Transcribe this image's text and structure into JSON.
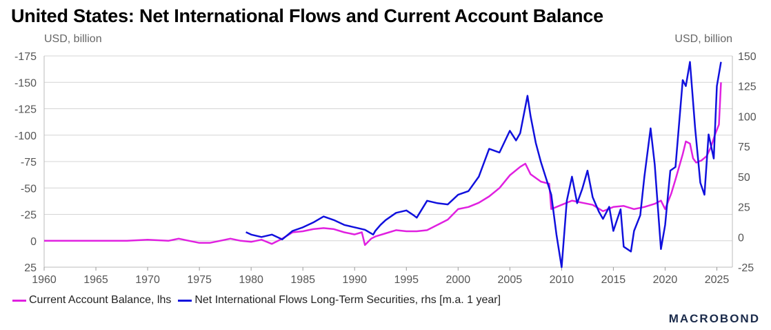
{
  "chart_data": {
    "type": "line",
    "title": "United States: Net International Flows and Current Account Balance",
    "left_axis": {
      "label": "USD, billion",
      "range": [
        -175,
        25
      ],
      "inverted": true,
      "ticks": [
        -175,
        -150,
        -125,
        -100,
        -75,
        -50,
        -25,
        0,
        25
      ]
    },
    "right_axis": {
      "label": "USD, billion",
      "range": [
        -25,
        150
      ],
      "ticks": [
        -25,
        0,
        25,
        50,
        75,
        100,
        125,
        150
      ]
    },
    "x_axis": {
      "range": [
        1960,
        2026.5
      ],
      "ticks": [
        1960,
        1965,
        1970,
        1975,
        1980,
        1985,
        1990,
        1995,
        2000,
        2005,
        2010,
        2015,
        2020,
        2025
      ]
    },
    "grid": true,
    "legend_position": "bottom-left",
    "series": [
      {
        "name": "Current Account Balance, lhs",
        "axis": "left",
        "color": "#e020e0",
        "points": [
          [
            1960,
            0
          ],
          [
            1962,
            0
          ],
          [
            1964,
            0
          ],
          [
            1966,
            0
          ],
          [
            1968,
            0
          ],
          [
            1970,
            -1
          ],
          [
            1972,
            0
          ],
          [
            1973,
            -2
          ],
          [
            1974,
            0
          ],
          [
            1975,
            2
          ],
          [
            1976,
            2
          ],
          [
            1977,
            0
          ],
          [
            1978,
            -2
          ],
          [
            1979,
            0
          ],
          [
            1980,
            1
          ],
          [
            1981,
            -1
          ],
          [
            1982,
            3
          ],
          [
            1983,
            -2
          ],
          [
            1984,
            -8
          ],
          [
            1985,
            -9
          ],
          [
            1986,
            -11
          ],
          [
            1987,
            -12
          ],
          [
            1988,
            -11
          ],
          [
            1989,
            -8
          ],
          [
            1990,
            -6
          ],
          [
            1990.7,
            -8
          ],
          [
            1991,
            4
          ],
          [
            1991.6,
            -2
          ],
          [
            1992,
            -4
          ],
          [
            1993,
            -7
          ],
          [
            1994,
            -10
          ],
          [
            1995,
            -9
          ],
          [
            1996,
            -9
          ],
          [
            1997,
            -10
          ],
          [
            1998,
            -15
          ],
          [
            1999,
            -20
          ],
          [
            2000,
            -30
          ],
          [
            2001,
            -32
          ],
          [
            2002,
            -36
          ],
          [
            2003,
            -42
          ],
          [
            2004,
            -50
          ],
          [
            2005,
            -62
          ],
          [
            2006,
            -70
          ],
          [
            2006.5,
            -73
          ],
          [
            2007,
            -63
          ],
          [
            2008,
            -56
          ],
          [
            2008.8,
            -54
          ],
          [
            2009,
            -30
          ],
          [
            2010,
            -34
          ],
          [
            2011,
            -38
          ],
          [
            2012,
            -36
          ],
          [
            2013,
            -34
          ],
          [
            2014,
            -28
          ],
          [
            2015,
            -32
          ],
          [
            2016,
            -33
          ],
          [
            2017,
            -30
          ],
          [
            2018,
            -32
          ],
          [
            2019,
            -35
          ],
          [
            2019.6,
            -38
          ],
          [
            2020,
            -30
          ],
          [
            2020.6,
            -45
          ],
          [
            2021,
            -58
          ],
          [
            2021.7,
            -82
          ],
          [
            2022,
            -94
          ],
          [
            2022.4,
            -92
          ],
          [
            2022.7,
            -78
          ],
          [
            2023,
            -74
          ],
          [
            2023.5,
            -76
          ],
          [
            2024,
            -80
          ],
          [
            2024.4,
            -88
          ],
          [
            2024.8,
            -100
          ],
          [
            2025.2,
            -110
          ],
          [
            2025.4,
            -150
          ]
        ]
      },
      {
        "name": "Net International Flows Long-Term Securities, rhs [m.a. 1 year]",
        "axis": "right",
        "color": "#1010dd",
        "points": [
          [
            1979.5,
            4
          ],
          [
            1980,
            2
          ],
          [
            1981,
            0
          ],
          [
            1982,
            2
          ],
          [
            1983,
            -2
          ],
          [
            1984,
            5
          ],
          [
            1985,
            8
          ],
          [
            1986,
            12
          ],
          [
            1987,
            17
          ],
          [
            1988,
            14
          ],
          [
            1989,
            10
          ],
          [
            1990,
            8
          ],
          [
            1991,
            6
          ],
          [
            1991.8,
            2
          ],
          [
            1992,
            5
          ],
          [
            1992.5,
            10
          ],
          [
            1993,
            14
          ],
          [
            1994,
            20
          ],
          [
            1995,
            22
          ],
          [
            1995.7,
            18
          ],
          [
            1996,
            16
          ],
          [
            1997,
            30
          ],
          [
            1998,
            28
          ],
          [
            1999,
            27
          ],
          [
            2000,
            35
          ],
          [
            2001,
            38
          ],
          [
            2002,
            50
          ],
          [
            2003,
            73
          ],
          [
            2004,
            70
          ],
          [
            2005,
            88
          ],
          [
            2005.6,
            80
          ],
          [
            2006,
            86
          ],
          [
            2006.7,
            117
          ],
          [
            2007,
            100
          ],
          [
            2007.5,
            78
          ],
          [
            2008,
            62
          ],
          [
            2009,
            35
          ],
          [
            2009.5,
            2
          ],
          [
            2010,
            -25
          ],
          [
            2010.5,
            30
          ],
          [
            2011,
            50
          ],
          [
            2011.5,
            28
          ],
          [
            2012,
            40
          ],
          [
            2012.5,
            55
          ],
          [
            2013,
            33
          ],
          [
            2013.6,
            21
          ],
          [
            2014,
            15
          ],
          [
            2014.6,
            25
          ],
          [
            2015,
            5
          ],
          [
            2015.7,
            23
          ],
          [
            2016,
            -8
          ],
          [
            2016.7,
            -12
          ],
          [
            2017,
            5
          ],
          [
            2017.6,
            18
          ],
          [
            2018,
            50
          ],
          [
            2018.6,
            90
          ],
          [
            2019,
            60
          ],
          [
            2019.6,
            -10
          ],
          [
            2020,
            10
          ],
          [
            2020.5,
            55
          ],
          [
            2021,
            58
          ],
          [
            2021.7,
            130
          ],
          [
            2022,
            125
          ],
          [
            2022.4,
            145
          ],
          [
            2022.9,
            90
          ],
          [
            2023.4,
            45
          ],
          [
            2023.8,
            35
          ],
          [
            2024.2,
            85
          ],
          [
            2024.7,
            65
          ],
          [
            2025,
            125
          ],
          [
            2025.4,
            145
          ]
        ]
      }
    ],
    "annotation": "MACROBOND"
  }
}
